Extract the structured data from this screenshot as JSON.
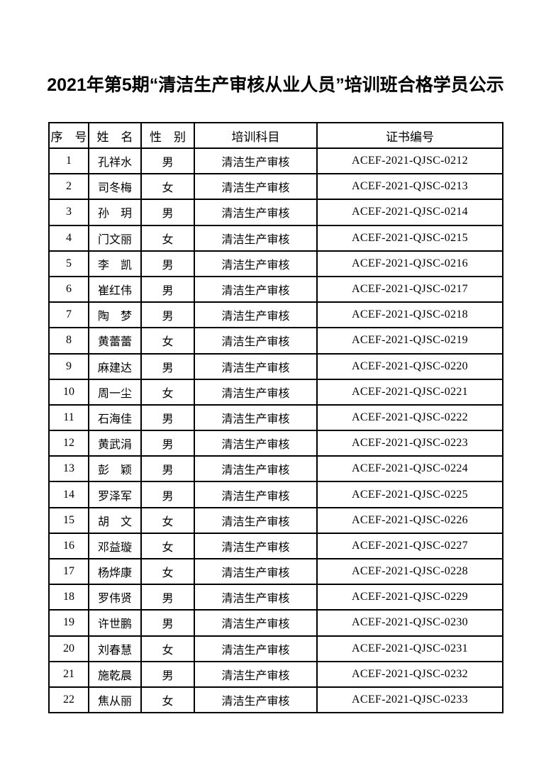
{
  "page": {
    "title": "2021年第5期“清洁生产审核从业人员”培训班合格学员公示"
  },
  "table": {
    "headers": [
      "序　号",
      "姓　名",
      "性　别",
      "培训科目",
      "证书编号"
    ],
    "rows": [
      {
        "no": "1",
        "name": "孔祥水",
        "gender": "男",
        "subject": "清洁生产审核",
        "certificate": "ACEF-2021-QJSC-0212"
      },
      {
        "no": "2",
        "name": "司冬梅",
        "gender": "女",
        "subject": "清洁生产审核",
        "certificate": "ACEF-2021-QJSC-0213"
      },
      {
        "no": "3",
        "name": "孙　玥",
        "gender": "男",
        "subject": "清洁生产审核",
        "certificate": "ACEF-2021-QJSC-0214"
      },
      {
        "no": "4",
        "name": "门文丽",
        "gender": "女",
        "subject": "清洁生产审核",
        "certificate": "ACEF-2021-QJSC-0215"
      },
      {
        "no": "5",
        "name": "李　凯",
        "gender": "男",
        "subject": "清洁生产审核",
        "certificate": "ACEF-2021-QJSC-0216"
      },
      {
        "no": "6",
        "name": "崔红伟",
        "gender": "男",
        "subject": "清洁生产审核",
        "certificate": "ACEF-2021-QJSC-0217"
      },
      {
        "no": "7",
        "name": "陶　梦",
        "gender": "男",
        "subject": "清洁生产审核",
        "certificate": "ACEF-2021-QJSC-0218"
      },
      {
        "no": "8",
        "name": "黄蕾蕾",
        "gender": "女",
        "subject": "清洁生产审核",
        "certificate": "ACEF-2021-QJSC-0219"
      },
      {
        "no": "9",
        "name": "麻建达",
        "gender": "男",
        "subject": "清洁生产审核",
        "certificate": "ACEF-2021-QJSC-0220"
      },
      {
        "no": "10",
        "name": "周一尘",
        "gender": "女",
        "subject": "清洁生产审核",
        "certificate": "ACEF-2021-QJSC-0221"
      },
      {
        "no": "11",
        "name": "石海佳",
        "gender": "男",
        "subject": "清洁生产审核",
        "certificate": "ACEF-2021-QJSC-0222"
      },
      {
        "no": "12",
        "name": "黄武涓",
        "gender": "男",
        "subject": "清洁生产审核",
        "certificate": "ACEF-2021-QJSC-0223"
      },
      {
        "no": "13",
        "name": "彭　颖",
        "gender": "男",
        "subject": "清洁生产审核",
        "certificate": "ACEF-2021-QJSC-0224"
      },
      {
        "no": "14",
        "name": "罗泽军",
        "gender": "男",
        "subject": "清洁生产审核",
        "certificate": "ACEF-2021-QJSC-0225"
      },
      {
        "no": "15",
        "name": "胡　文",
        "gender": "女",
        "subject": "清洁生产审核",
        "certificate": "ACEF-2021-QJSC-0226"
      },
      {
        "no": "16",
        "name": "邓益璇",
        "gender": "女",
        "subject": "清洁生产审核",
        "certificate": "ACEF-2021-QJSC-0227"
      },
      {
        "no": "17",
        "name": "杨烨康",
        "gender": "女",
        "subject": "清洁生产审核",
        "certificate": "ACEF-2021-QJSC-0228"
      },
      {
        "no": "18",
        "name": "罗伟贤",
        "gender": "男",
        "subject": "清洁生产审核",
        "certificate": "ACEF-2021-QJSC-0229"
      },
      {
        "no": "19",
        "name": "许世鹏",
        "gender": "男",
        "subject": "清洁生产审核",
        "certificate": "ACEF-2021-QJSC-0230"
      },
      {
        "no": "20",
        "name": "刘春慧",
        "gender": "女",
        "subject": "清洁生产审核",
        "certificate": "ACEF-2021-QJSC-0231"
      },
      {
        "no": "21",
        "name": "施乾晨",
        "gender": "男",
        "subject": "清洁生产审核",
        "certificate": "ACEF-2021-QJSC-0232"
      },
      {
        "no": "22",
        "name": "焦从丽",
        "gender": "女",
        "subject": "清洁生产审核",
        "certificate": "ACEF-2021-QJSC-0233"
      }
    ]
  }
}
